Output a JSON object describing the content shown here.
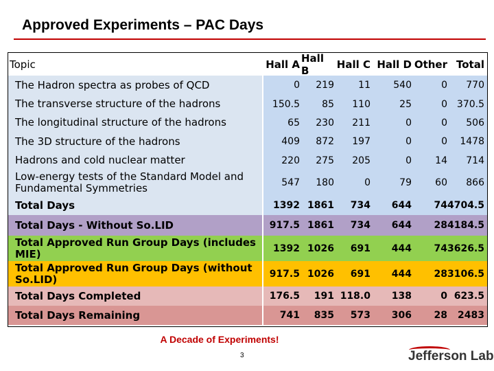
{
  "title": "Approved Experiments – PAC Days",
  "header": {
    "topic": "Topic",
    "cols": [
      "Hall A",
      "Hall B",
      "Hall C",
      "Hall D",
      "Other",
      "Total"
    ]
  },
  "rows": [
    {
      "topic": "The Hadron spectra as probes of QCD",
      "vals": [
        "0",
        "219",
        "11",
        "540",
        "0",
        "770"
      ],
      "bg": "#c6d9f1",
      "bold": false
    },
    {
      "topic": "The transverse structure of the hadrons",
      "vals": [
        "150.5",
        "85",
        "110",
        "25",
        "0",
        "370.5"
      ],
      "bg": "#c6d9f1",
      "bold": false
    },
    {
      "topic": "The longitudinal structure of the hadrons",
      "vals": [
        "65",
        "230",
        "211",
        "0",
        "0",
        "506"
      ],
      "bg": "#c6d9f1",
      "bold": false
    },
    {
      "topic": "The 3D structure of the hadrons",
      "vals": [
        "409",
        "872",
        "197",
        "0",
        "0",
        "1478"
      ],
      "bg": "#c6d9f1",
      "bold": false
    },
    {
      "topic": "Hadrons and cold nuclear matter",
      "vals": [
        "220",
        "275",
        "205",
        "0",
        "14",
        "714"
      ],
      "bg": "#c6d9f1",
      "bold": false
    },
    {
      "topic": "Low-energy tests of the Standard Model and Fundamental Symmetries",
      "vals": [
        "547",
        "180",
        "0",
        "79",
        "60",
        "866"
      ],
      "bg": "#c6d9f1",
      "bold": false
    },
    {
      "topic": "Total Days",
      "vals": [
        "1392",
        "1861",
        "734",
        "644",
        "74",
        "4704.5"
      ],
      "bg": "#c6d9f1",
      "bold": true
    },
    {
      "topic": "Total Days - Without So.LID",
      "vals": [
        "917.5",
        "1861",
        "734",
        "644",
        "28",
        "4184.5"
      ],
      "bg": "#b1a0c7",
      "bold": true
    },
    {
      "topic": "Total Approved Run Group Days (includes MIE)",
      "vals": [
        "1392",
        "1026",
        "691",
        "444",
        "74",
        "3626.5"
      ],
      "bg": "#92d050",
      "bold": true
    },
    {
      "topic": "Total Approved Run Group Days (without So.LID)",
      "vals": [
        "917.5",
        "1026",
        "691",
        "444",
        "28",
        "3106.5"
      ],
      "bg": "#ffc000",
      "bold": true
    },
    {
      "topic": "Total Days Completed",
      "vals": [
        "176.5",
        "191",
        "118.0",
        "138",
        "0",
        "623.5"
      ],
      "bg": "#e6b9b8",
      "bold": true
    },
    {
      "topic": "Total Days Remaining",
      "vals": [
        "741",
        "835",
        "573",
        "306",
        "28",
        "2483"
      ],
      "bg": "#d99694",
      "bold": true
    }
  ],
  "footer": "A Decade of Experiments!",
  "page_number": "3",
  "logo": "Jefferson Lab",
  "colors": {
    "accent": "#c00000"
  }
}
